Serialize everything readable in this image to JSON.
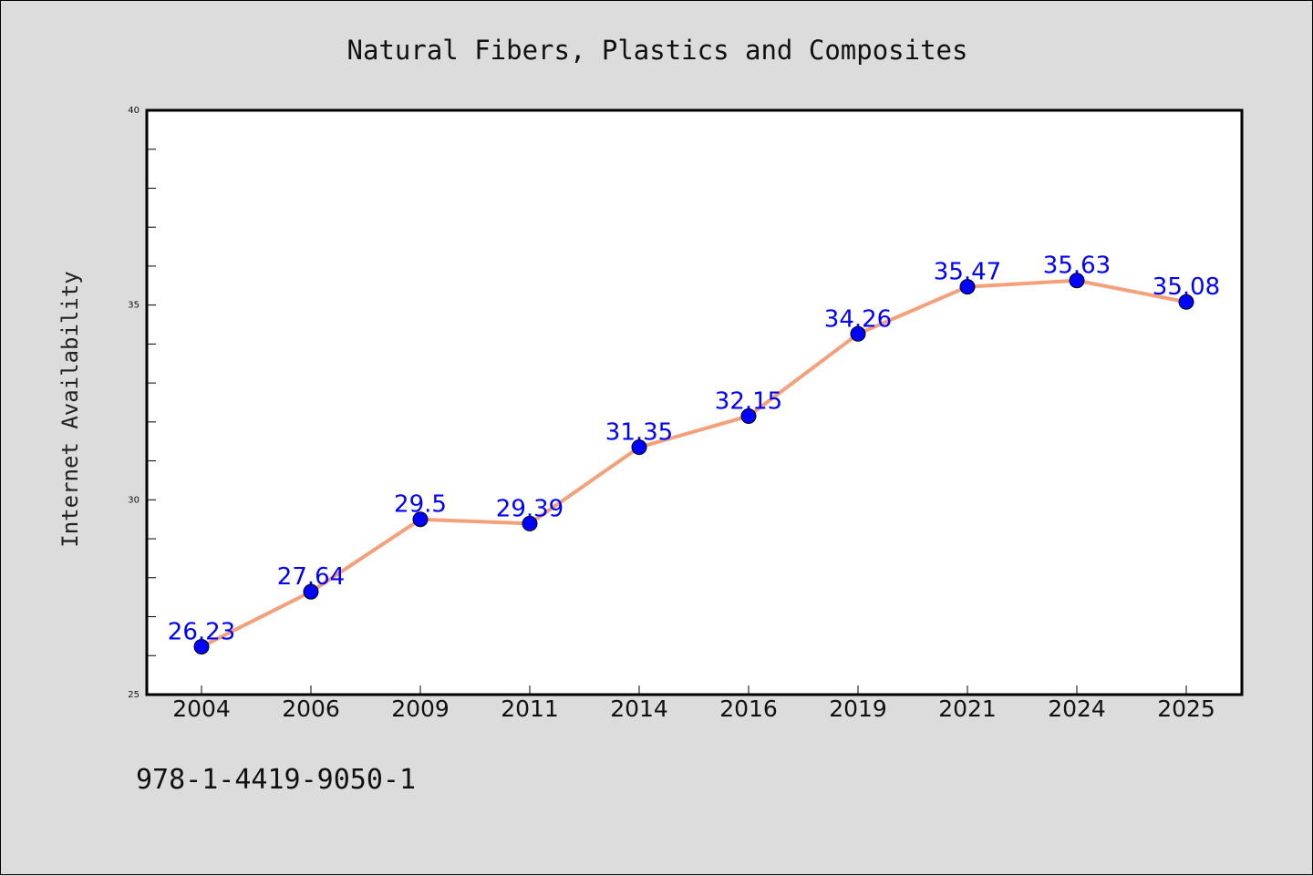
{
  "chart_data": {
    "type": "line",
    "title": "Natural Fibers, Plastics and Composites",
    "xlabel": "",
    "ylabel": "Internet Availability",
    "categories": [
      "2004",
      "2006",
      "2009",
      "2011",
      "2014",
      "2016",
      "2019",
      "2021",
      "2024",
      "2025"
    ],
    "series": [
      {
        "values": [
          26.23,
          27.64,
          29.5,
          29.39,
          31.35,
          32.15,
          34.26,
          35.47,
          35.63,
          35.08
        ],
        "data_labels": [
          "26.23",
          "27.64",
          "29.5",
          "29.39",
          "31.35",
          "32.15",
          "34.26",
          "35.47",
          "35.63",
          "35.08"
        ],
        "line_color": "#f4a07a",
        "marker_color": "#0000ff"
      }
    ],
    "ylim": [
      25,
      40
    ],
    "yticks": [
      "25",
      "30",
      "35",
      "40"
    ],
    "y_minor_step": 1,
    "grid": false,
    "legend": "none",
    "label_color": "#0000ff"
  },
  "footnote": "978-1-4419-9050-1"
}
